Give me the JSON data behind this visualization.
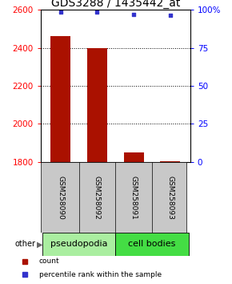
{
  "title": "GDS3288 / 1435442_at",
  "categories": [
    "GSM258090",
    "GSM258092",
    "GSM258091",
    "GSM258093"
  ],
  "bar_values": [
    2462,
    2397,
    1848,
    1803
  ],
  "percentile_values": [
    98.5,
    98.5,
    97.0,
    96.5
  ],
  "ylim_left": [
    1800,
    2600
  ],
  "ylim_right": [
    0,
    100
  ],
  "yticks_left": [
    1800,
    2000,
    2200,
    2400,
    2600
  ],
  "yticks_right": [
    0,
    25,
    50,
    75,
    100
  ],
  "ytick_labels_right": [
    "0",
    "25",
    "50",
    "75",
    "100%"
  ],
  "bar_color": "#AA1100",
  "dot_color": "#3333CC",
  "groups": [
    {
      "label": "pseudopodia",
      "indices": [
        0,
        1
      ],
      "color": "#AAEEA0"
    },
    {
      "label": "cell bodies",
      "indices": [
        2,
        3
      ],
      "color": "#44DD44"
    }
  ],
  "legend_items": [
    {
      "label": "count",
      "color": "#AA1100"
    },
    {
      "label": "percentile rank within the sample",
      "color": "#3333CC"
    }
  ],
  "other_label": "other",
  "arrow_label": "▶",
  "title_fontsize": 10,
  "tick_fontsize": 7.5,
  "label_fontsize": 7.5,
  "group_fontsize": 8,
  "bar_width": 0.55
}
